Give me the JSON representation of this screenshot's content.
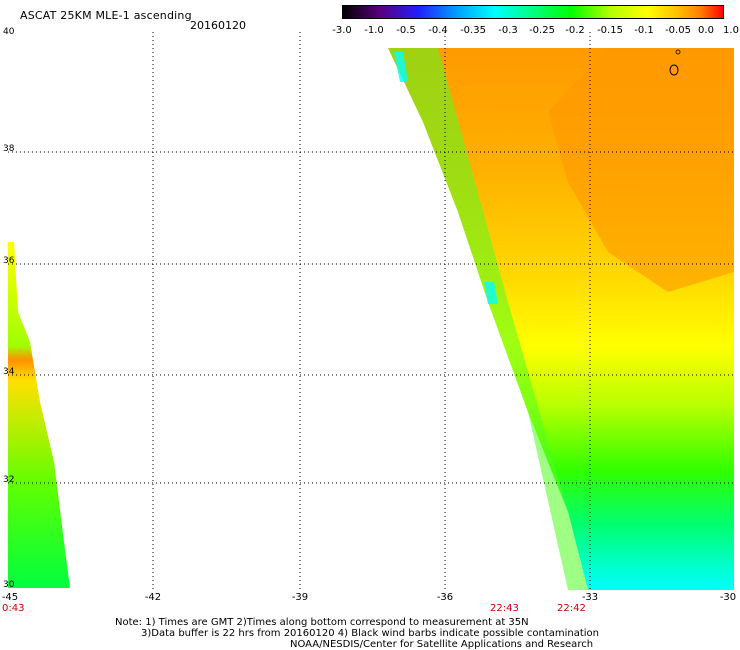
{
  "header": {
    "title": "ASCAT 25KM MLE-1 ascending",
    "date": "20160120"
  },
  "colorbar": {
    "ticks": [
      "-3.0",
      "-1.0",
      "-0.5",
      "-0.4",
      "-0.35",
      "-0.3",
      "-0.25",
      "-0.2",
      "-0.15",
      "-0.1",
      "-0.05",
      "0.0",
      "1.0"
    ],
    "colors": [
      "#000000",
      "#5a0080",
      "#2020ff",
      "#00a0ff",
      "#00ffff",
      "#00ff80",
      "#00ff00",
      "#b0ff00",
      "#ffff00",
      "#ffc000",
      "#ff8000",
      "#ff0000"
    ]
  },
  "axes": {
    "lat_labels": [
      "40",
      "38",
      "36",
      "34",
      "32",
      "30"
    ],
    "lon_labels": [
      "-45",
      "-42",
      "-39",
      "-36",
      "-33",
      "-30"
    ]
  },
  "times": [
    "0:43",
    "22:43",
    "22:42"
  ],
  "notes": {
    "line1": "Note: 1) Times are GMT 2)Times along bottom correspond to measurement at 35N",
    "line2": "3)Data buffer is 22 hrs from 20160120 4) Black wind barbs indicate possible contamination",
    "line3": "NOAA/NESDIS/Center for Satellite Applications and Research"
  }
}
